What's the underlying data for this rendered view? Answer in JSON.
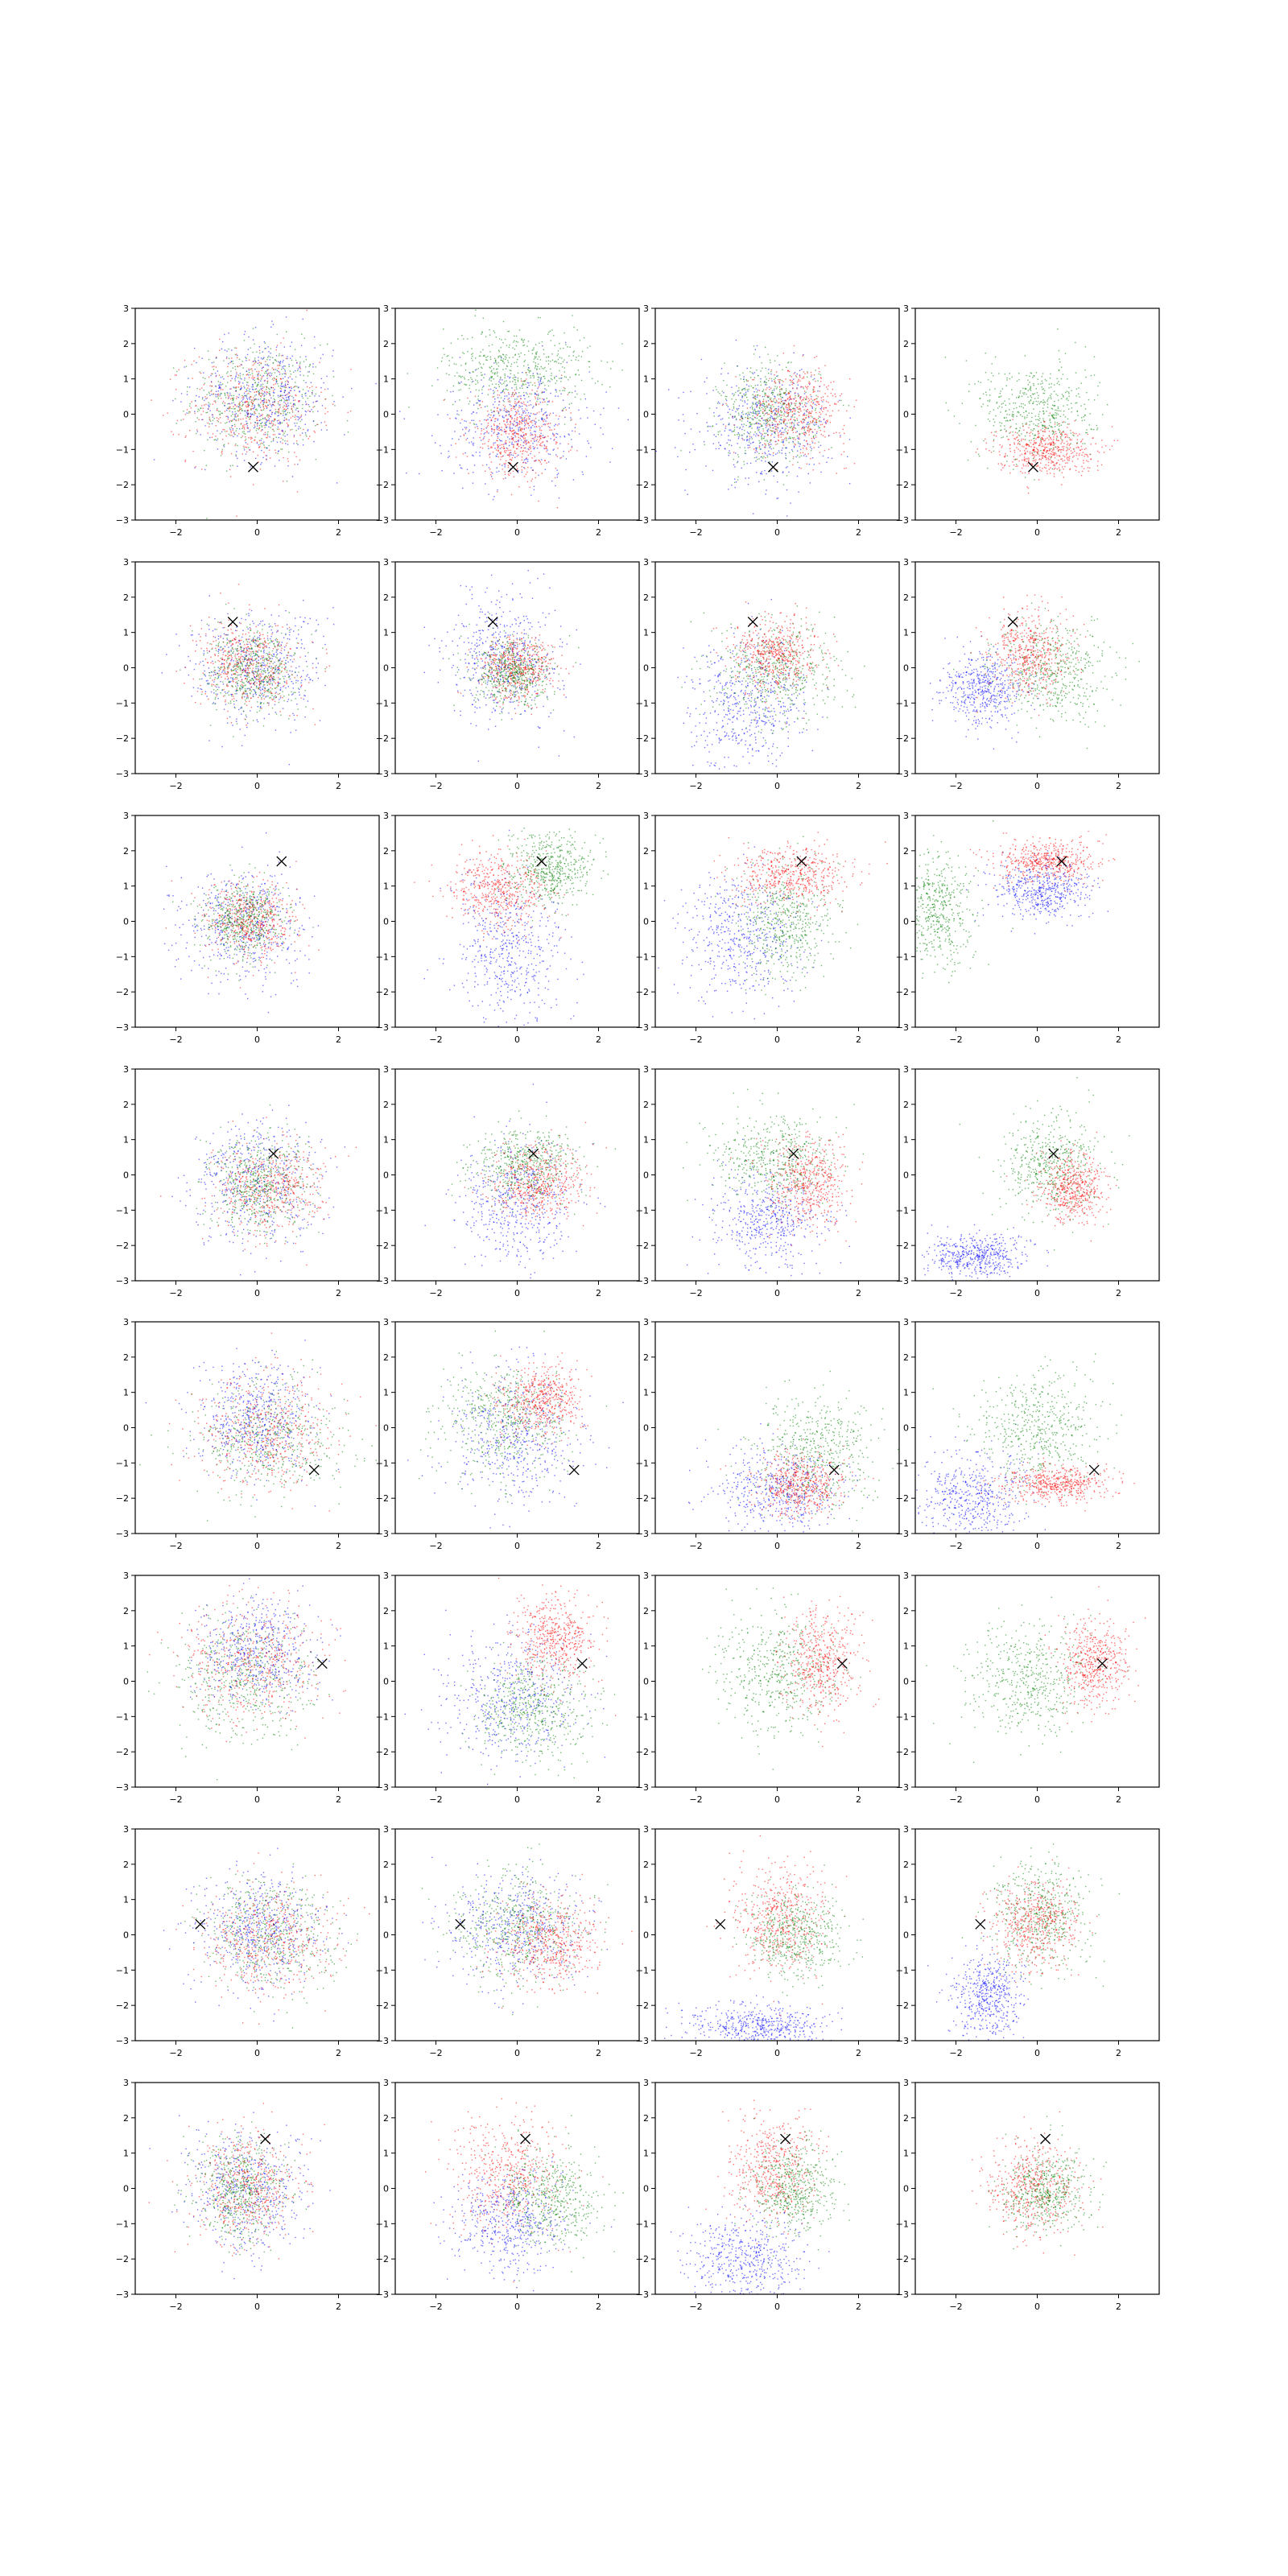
{
  "chart_data": {
    "type": "scatter",
    "layout": {
      "rows": 8,
      "cols": 4
    },
    "marker": "x",
    "xlim": [
      -3,
      3
    ],
    "ylim": [
      -3,
      3
    ],
    "xticks": [
      -2,
      0,
      2
    ],
    "yticks": [
      -3,
      -2,
      -1,
      0,
      1,
      2,
      3
    ],
    "xtick_labels": [
      "−2",
      "0",
      "2"
    ],
    "ytick_labels": [
      "−3",
      "−2",
      "−1",
      "0",
      "1",
      "2",
      "3"
    ],
    "colors": {
      "blue": "#0000ff",
      "green": "#008000",
      "red": "#ff0000",
      "marker": "#000000"
    },
    "rows": [
      {
        "marker_xy": [
          -0.1,
          -1.5
        ],
        "panels": [
          [
            {
              "c": "green",
              "cx": 0,
              "cy": 0.4,
              "sx": 0.8,
              "sy": 0.8,
              "n": 500
            },
            {
              "c": "red",
              "cx": -0.1,
              "cy": 0.2,
              "sx": 0.8,
              "sy": 0.8,
              "n": 500
            },
            {
              "c": "blue",
              "cx": 0.2,
              "cy": 0.5,
              "sx": 0.85,
              "sy": 0.85,
              "n": 500
            }
          ],
          [
            {
              "c": "green",
              "cx": 0,
              "cy": 1.3,
              "sx": 0.9,
              "sy": 0.6,
              "n": 500
            },
            {
              "c": "blue",
              "cx": 0,
              "cy": -0.3,
              "sx": 0.9,
              "sy": 0.8,
              "n": 500
            },
            {
              "c": "red",
              "cx": 0,
              "cy": -0.6,
              "sx": 0.6,
              "sy": 0.6,
              "n": 500
            }
          ],
          [
            {
              "c": "blue",
              "cx": -0.3,
              "cy": -0.3,
              "sx": 0.8,
              "sy": 0.8,
              "n": 500
            },
            {
              "c": "green",
              "cx": -0.2,
              "cy": 0,
              "sx": 0.6,
              "sy": 0.7,
              "n": 500
            },
            {
              "c": "red",
              "cx": 0.5,
              "cy": 0.1,
              "sx": 0.6,
              "sy": 0.6,
              "n": 500
            }
          ],
          [
            {
              "c": "green",
              "cx": 0,
              "cy": 0.1,
              "sx": 0.7,
              "sy": 0.7,
              "n": 500
            },
            {
              "c": "red",
              "cx": 0.2,
              "cy": -1.0,
              "sx": 0.6,
              "sy": 0.35,
              "n": 500
            }
          ]
        ]
      },
      {
        "marker_xy": [
          -0.6,
          1.3
        ],
        "panels": [
          [
            {
              "c": "blue",
              "cx": 0,
              "cy": 0,
              "sx": 0.8,
              "sy": 0.8,
              "n": 500
            },
            {
              "c": "red",
              "cx": -0.2,
              "cy": 0.1,
              "sx": 0.6,
              "sy": 0.6,
              "n": 500
            },
            {
              "c": "green",
              "cx": -0.1,
              "cy": -0.1,
              "sx": 0.55,
              "sy": 0.6,
              "n": 500
            }
          ],
          [
            {
              "c": "blue",
              "cx": -0.3,
              "cy": 0.3,
              "sx": 0.7,
              "sy": 0.9,
              "n": 500
            },
            {
              "c": "red",
              "cx": 0,
              "cy": 0,
              "sx": 0.45,
              "sy": 0.45,
              "n": 500
            },
            {
              "c": "green",
              "cx": -0.1,
              "cy": -0.2,
              "sx": 0.5,
              "sy": 0.45,
              "n": 500
            }
          ],
          [
            {
              "c": "blue",
              "cx": -0.7,
              "cy": -1.0,
              "sx": 0.7,
              "sy": 0.9,
              "n": 500
            },
            {
              "c": "green",
              "cx": 0,
              "cy": -0.1,
              "sx": 0.75,
              "sy": 0.7,
              "n": 500
            },
            {
              "c": "red",
              "cx": 0,
              "cy": 0.4,
              "sx": 0.5,
              "sy": 0.5,
              "n": 500
            }
          ],
          [
            {
              "c": "blue",
              "cx": -1.3,
              "cy": -0.6,
              "sx": 0.5,
              "sy": 0.5,
              "n": 500
            },
            {
              "c": "green",
              "cx": 0.4,
              "cy": -0.1,
              "sx": 0.7,
              "sy": 0.7,
              "n": 500
            },
            {
              "c": "red",
              "cx": -0.2,
              "cy": 0.4,
              "sx": 0.5,
              "sy": 0.6,
              "n": 500
            }
          ]
        ]
      },
      {
        "marker_xy": [
          0.6,
          1.7
        ],
        "panels": [
          [
            {
              "c": "blue",
              "cx": -0.3,
              "cy": -0.1,
              "sx": 0.75,
              "sy": 0.8,
              "n": 500
            },
            {
              "c": "red",
              "cx": -0.2,
              "cy": 0,
              "sx": 0.55,
              "sy": 0.55,
              "n": 500
            },
            {
              "c": "green",
              "cx": -0.3,
              "cy": 0,
              "sx": 0.5,
              "sy": 0.55,
              "n": 500
            }
          ],
          [
            {
              "c": "blue",
              "cx": -0.2,
              "cy": -0.8,
              "sx": 0.7,
              "sy": 1.0,
              "n": 500
            },
            {
              "c": "red",
              "cx": -0.4,
              "cy": 0.9,
              "sx": 0.6,
              "sy": 0.5,
              "n": 500
            },
            {
              "c": "green",
              "cx": 0.8,
              "cy": 1.5,
              "sx": 0.5,
              "sy": 0.5,
              "n": 500
            }
          ],
          [
            {
              "c": "blue",
              "cx": -0.9,
              "cy": -0.4,
              "sx": 0.75,
              "sy": 0.9,
              "n": 500
            },
            {
              "c": "green",
              "cx": 0.3,
              "cy": 0,
              "sx": 0.6,
              "sy": 0.8,
              "n": 500
            },
            {
              "c": "red",
              "cx": 0.3,
              "cy": 1.3,
              "sx": 0.7,
              "sy": 0.4,
              "n": 500
            }
          ],
          [
            {
              "c": "green",
              "cx": -2.5,
              "cy": 0.3,
              "sx": 0.45,
              "sy": 0.8,
              "n": 500
            },
            {
              "c": "blue",
              "cx": 0.1,
              "cy": 0.9,
              "sx": 0.6,
              "sy": 0.4,
              "n": 500
            },
            {
              "c": "red",
              "cx": 0.2,
              "cy": 1.7,
              "sx": 0.6,
              "sy": 0.3,
              "n": 500
            }
          ]
        ]
      },
      {
        "marker_xy": [
          0.4,
          0.6
        ],
        "panels": [
          [
            {
              "c": "blue",
              "cx": 0,
              "cy": -0.3,
              "sx": 0.8,
              "sy": 0.9,
              "n": 500
            },
            {
              "c": "red",
              "cx": 0.3,
              "cy": -0.4,
              "sx": 0.65,
              "sy": 0.65,
              "n": 500
            },
            {
              "c": "green",
              "cx": 0,
              "cy": -0.3,
              "sx": 0.6,
              "sy": 0.7,
              "n": 500
            }
          ],
          [
            {
              "c": "blue",
              "cx": 0,
              "cy": -0.8,
              "sx": 0.7,
              "sy": 0.9,
              "n": 500
            },
            {
              "c": "green",
              "cx": 0.2,
              "cy": 0.3,
              "sx": 0.6,
              "sy": 0.5,
              "n": 500
            },
            {
              "c": "red",
              "cx": 0.5,
              "cy": -0.2,
              "sx": 0.6,
              "sy": 0.5,
              "n": 500
            }
          ],
          [
            {
              "c": "blue",
              "cx": -0.2,
              "cy": -1.3,
              "sx": 0.7,
              "sy": 0.7,
              "n": 500
            },
            {
              "c": "green",
              "cx": -0.1,
              "cy": 0.5,
              "sx": 0.7,
              "sy": 0.6,
              "n": 500
            },
            {
              "c": "red",
              "cx": 0.8,
              "cy": -0.2,
              "sx": 0.5,
              "sy": 0.6,
              "n": 500
            }
          ],
          [
            {
              "c": "blue",
              "cx": -1.5,
              "cy": -2.3,
              "sx": 0.6,
              "sy": 0.3,
              "n": 500
            },
            {
              "c": "green",
              "cx": 0.3,
              "cy": 0.3,
              "sx": 0.6,
              "sy": 0.7,
              "n": 500
            },
            {
              "c": "red",
              "cx": 0.9,
              "cy": -0.4,
              "sx": 0.4,
              "sy": 0.5,
              "n": 500
            }
          ]
        ]
      },
      {
        "marker_xy": [
          1.4,
          -1.2
        ],
        "panels": [
          [
            {
              "c": "green",
              "cx": 0.3,
              "cy": -0.3,
              "sx": 0.85,
              "sy": 0.8,
              "n": 500
            },
            {
              "c": "red",
              "cx": 0.2,
              "cy": -0.2,
              "sx": 0.8,
              "sy": 0.8,
              "n": 500
            },
            {
              "c": "blue",
              "cx": 0,
              "cy": 0.2,
              "sx": 0.7,
              "sy": 0.75,
              "n": 500
            }
          ],
          [
            {
              "c": "blue",
              "cx": 0,
              "cy": -0.3,
              "sx": 0.8,
              "sy": 1.0,
              "n": 500
            },
            {
              "c": "green",
              "cx": -0.3,
              "cy": 0.2,
              "sx": 0.8,
              "sy": 0.8,
              "n": 500
            },
            {
              "c": "red",
              "cx": 0.6,
              "cy": 0.8,
              "sx": 0.5,
              "sy": 0.5,
              "n": 500
            }
          ],
          [
            {
              "c": "blue",
              "cx": 0,
              "cy": -1.8,
              "sx": 0.8,
              "sy": 0.6,
              "n": 500
            },
            {
              "c": "green",
              "cx": 1.0,
              "cy": -0.6,
              "sx": 0.7,
              "sy": 0.8,
              "n": 500
            },
            {
              "c": "red",
              "cx": 0.6,
              "cy": -1.6,
              "sx": 0.55,
              "sy": 0.45,
              "n": 500
            }
          ],
          [
            {
              "c": "blue",
              "cx": -1.6,
              "cy": -2.0,
              "sx": 0.7,
              "sy": 0.6,
              "n": 500
            },
            {
              "c": "green",
              "cx": 0,
              "cy": 0,
              "sx": 0.75,
              "sy": 0.8,
              "n": 500
            },
            {
              "c": "red",
              "cx": 0.5,
              "cy": -1.6,
              "sx": 0.65,
              "sy": 0.25,
              "n": 500
            }
          ]
        ]
      },
      {
        "marker_xy": [
          1.6,
          0.5
        ],
        "panels": [
          [
            {
              "c": "green",
              "cx": -0.3,
              "cy": 0.1,
              "sx": 0.85,
              "sy": 0.85,
              "n": 500
            },
            {
              "c": "red",
              "cx": -0.1,
              "cy": 0.6,
              "sx": 0.8,
              "sy": 0.8,
              "n": 500
            },
            {
              "c": "blue",
              "cx": 0,
              "cy": 0.9,
              "sx": 0.75,
              "sy": 0.75,
              "n": 500
            }
          ],
          [
            {
              "c": "blue",
              "cx": -0.1,
              "cy": -0.4,
              "sx": 0.8,
              "sy": 0.9,
              "n": 500
            },
            {
              "c": "green",
              "cx": 0.4,
              "cy": -0.8,
              "sx": 0.7,
              "sy": 0.7,
              "n": 500
            },
            {
              "c": "red",
              "cx": 0.9,
              "cy": 1.2,
              "sx": 0.5,
              "sy": 0.6,
              "n": 500
            }
          ],
          [
            {
              "c": "green",
              "cx": 0,
              "cy": 0.2,
              "sx": 0.75,
              "sy": 0.8,
              "n": 500
            },
            {
              "c": "red",
              "cx": 1.1,
              "cy": 0.5,
              "sx": 0.45,
              "sy": 0.7,
              "n": 500
            }
          ],
          [
            {
              "c": "green",
              "cx": -0.2,
              "cy": 0,
              "sx": 0.75,
              "sy": 0.8,
              "n": 500
            },
            {
              "c": "red",
              "cx": 1.4,
              "cy": 0.5,
              "sx": 0.4,
              "sy": 0.6,
              "n": 500
            }
          ]
        ]
      },
      {
        "marker_xy": [
          -1.4,
          0.3
        ],
        "panels": [
          [
            {
              "c": "green",
              "cx": 0.3,
              "cy": 0,
              "sx": 0.85,
              "sy": 0.8,
              "n": 500
            },
            {
              "c": "red",
              "cx": 0.3,
              "cy": -0.2,
              "sx": 0.8,
              "sy": 0.8,
              "n": 500
            },
            {
              "c": "blue",
              "cx": 0,
              "cy": 0.1,
              "sx": 0.8,
              "sy": 0.8,
              "n": 500
            }
          ],
          [
            {
              "c": "blue",
              "cx": 0,
              "cy": 0.2,
              "sx": 0.85,
              "sy": 0.8,
              "n": 500
            },
            {
              "c": "green",
              "cx": 0,
              "cy": 0.2,
              "sx": 0.8,
              "sy": 0.8,
              "n": 500
            },
            {
              "c": "red",
              "cx": 0.8,
              "cy": -0.2,
              "sx": 0.6,
              "sy": 0.6,
              "n": 500
            }
          ],
          [
            {
              "c": "blue",
              "cx": -0.5,
              "cy": -2.6,
              "sx": 0.8,
              "sy": 0.3,
              "n": 500
            },
            {
              "c": "red",
              "cx": 0,
              "cy": 0.4,
              "sx": 0.6,
              "sy": 0.8,
              "n": 500
            },
            {
              "c": "green",
              "cx": 0.5,
              "cy": 0,
              "sx": 0.55,
              "sy": 0.6,
              "n": 500
            }
          ],
          [
            {
              "c": "blue",
              "cx": -1.2,
              "cy": -1.8,
              "sx": 0.4,
              "sy": 0.6,
              "n": 500
            },
            {
              "c": "green",
              "cx": 0.1,
              "cy": 0.5,
              "sx": 0.6,
              "sy": 0.8,
              "n": 500
            },
            {
              "c": "red",
              "cx": -0.1,
              "cy": 0.3,
              "sx": 0.55,
              "sy": 0.6,
              "n": 500
            }
          ]
        ]
      },
      {
        "marker_xy": [
          0.2,
          1.4
        ],
        "panels": [
          [
            {
              "c": "blue",
              "cx": -0.3,
              "cy": -0.1,
              "sx": 0.7,
              "sy": 0.85,
              "n": 500
            },
            {
              "c": "red",
              "cx": -0.2,
              "cy": 0,
              "sx": 0.65,
              "sy": 0.75,
              "n": 500
            },
            {
              "c": "green",
              "cx": -0.4,
              "cy": 0,
              "sx": 0.55,
              "sy": 0.7,
              "n": 500
            }
          ],
          [
            {
              "c": "red",
              "cx": -0.3,
              "cy": 0.4,
              "sx": 0.7,
              "sy": 0.8,
              "n": 500
            },
            {
              "c": "blue",
              "cx": -0.2,
              "cy": -1.0,
              "sx": 0.7,
              "sy": 0.7,
              "n": 500
            },
            {
              "c": "green",
              "cx": 0.8,
              "cy": -0.3,
              "sx": 0.6,
              "sy": 0.7,
              "n": 500
            }
          ],
          [
            {
              "c": "blue",
              "cx": -0.8,
              "cy": -2.0,
              "sx": 0.7,
              "sy": 0.6,
              "n": 500
            },
            {
              "c": "red",
              "cx": -0.1,
              "cy": 0.5,
              "sx": 0.55,
              "sy": 0.7,
              "n": 500
            },
            {
              "c": "green",
              "cx": 0.4,
              "cy": 0,
              "sx": 0.5,
              "sy": 0.6,
              "n": 500
            }
          ],
          [
            {
              "c": "red",
              "cx": -0.1,
              "cy": 0,
              "sx": 0.55,
              "sy": 0.65,
              "n": 500
            },
            {
              "c": "green",
              "cx": 0.2,
              "cy": -0.1,
              "sx": 0.5,
              "sy": 0.6,
              "n": 500
            }
          ]
        ]
      }
    ]
  }
}
